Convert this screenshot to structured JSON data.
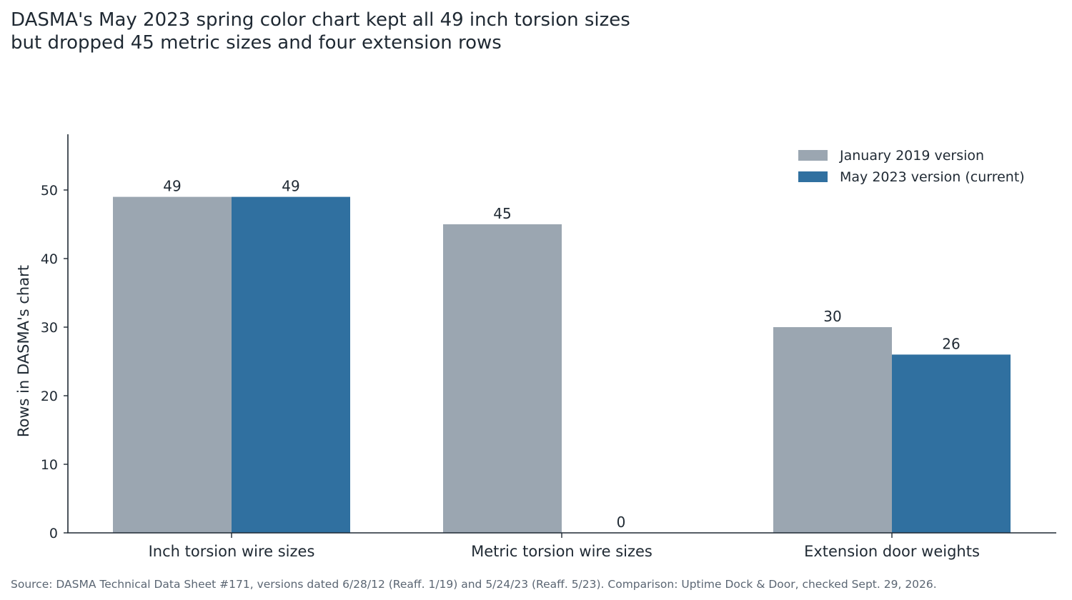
{
  "title_lines": [
    "DASMA's May 2023 spring color chart kept all 49 inch torsion sizes",
    "but dropped 45 metric sizes and four extension rows"
  ],
  "source": "Source: DASMA Technical Data Sheet #171, versions dated 6/28/12 (Reaff. 1/19) and 5/24/23 (Reaff. 5/23). Comparison: Uptime Dock & Door, checked Sept. 29, 2026.",
  "colors": {
    "series_2019": "#9ba6b1",
    "series_2023": "#3070a0",
    "axis": "#1f2933",
    "text": "#1f2933"
  },
  "chart_data": {
    "type": "bar",
    "categories": [
      "Inch torsion wire sizes",
      "Metric torsion wire sizes",
      "Extension door weights"
    ],
    "series": [
      {
        "name": "January 2019 version",
        "values": [
          49,
          45,
          30
        ]
      },
      {
        "name": "May 2023 version (current)",
        "values": [
          49,
          0,
          26
        ]
      }
    ],
    "ylabel": "Rows in DASMA's chart",
    "xlabel": "",
    "ylim": [
      0,
      58
    ],
    "yticks": [
      0,
      10,
      20,
      30,
      40,
      50
    ],
    "grid": false,
    "legend": "top-right"
  }
}
